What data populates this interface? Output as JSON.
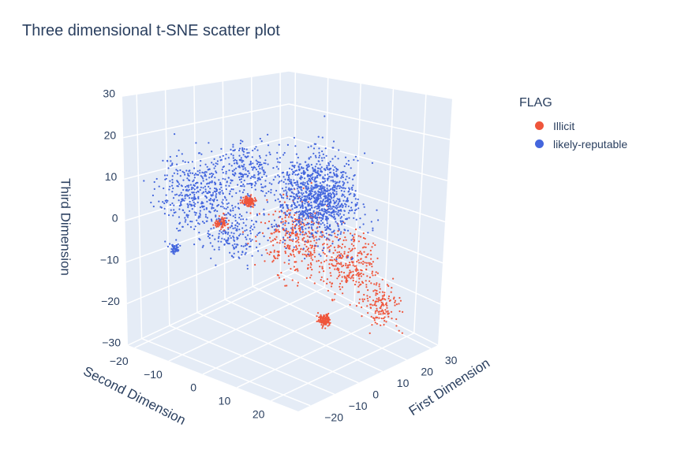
{
  "chart_data": {
    "type": "scatter",
    "title": "Three dimensional t-SNE scatter plot",
    "legend_title": "FLAG",
    "legend_position": "top-right",
    "axes": {
      "x": {
        "label": "First Dimension",
        "ticks": [
          -20,
          -10,
          0,
          10,
          20,
          30
        ],
        "range": [
          -25,
          33
        ]
      },
      "y": {
        "label": "Second Dimension",
        "ticks": [
          -20,
          -10,
          0,
          10,
          20
        ],
        "range": [
          -22,
          28
        ]
      },
      "z": {
        "label": "Third Dimension",
        "ticks": [
          -30,
          -20,
          -10,
          0,
          10,
          20,
          30
        ],
        "range": [
          -30,
          30
        ]
      }
    },
    "grid": true,
    "series": [
      {
        "name": "Illicit",
        "color": "#ef553b",
        "clusters": [
          {
            "center": [
              12,
              -16,
              -2
            ],
            "spread": 0.7,
            "count": 120
          },
          {
            "center": [
              4,
              14,
              -21
            ],
            "spread": 0.7,
            "count": 120
          },
          {
            "center": [
              -10,
              -6,
              0
            ],
            "spread": 0.7,
            "count": 90
          },
          {
            "center": [
              18,
              10,
              -12
            ],
            "spread": 3.5,
            "count": 260
          },
          {
            "center": [
              8,
              2,
              -6
            ],
            "spread": 4.5,
            "count": 320
          },
          {
            "center": [
              24,
              16,
              -22
            ],
            "spread": 2.5,
            "count": 140
          }
        ]
      },
      {
        "name": "likely-reputable",
        "color": "#4466dd",
        "clusters": [
          {
            "center": [
              2,
              12,
              8
            ],
            "spread": 5.0,
            "count": 700
          },
          {
            "center": [
              -16,
              -8,
              8
            ],
            "spread": 4.5,
            "count": 450
          },
          {
            "center": [
              -4,
              18,
              10
            ],
            "spread": 4.5,
            "count": 420
          },
          {
            "center": [
              -8,
              0,
              14
            ],
            "spread": 3.0,
            "count": 200
          },
          {
            "center": [
              -10,
              -20,
              -10
            ],
            "spread": 0.6,
            "count": 50
          },
          {
            "center": [
              -20,
              6,
              2
            ],
            "spread": 3.0,
            "count": 150
          }
        ]
      }
    ]
  }
}
